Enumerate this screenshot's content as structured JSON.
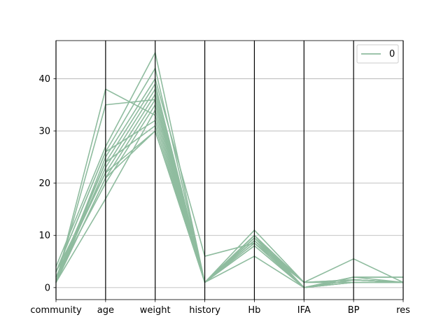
{
  "chart_data": {
    "type": "parallel-coordinates",
    "axes": [
      "community",
      "age",
      "weight",
      "history",
      "Hb",
      "IFA",
      "BP",
      "res"
    ],
    "ylim": [
      -2.3,
      47.3
    ],
    "yticks": [
      "0",
      "10",
      "20",
      "30",
      "40"
    ],
    "ytick_values": [
      0,
      10,
      20,
      30,
      40
    ],
    "grid": "horizontal",
    "legend": {
      "placement": "top-right",
      "entries": [
        "0"
      ]
    },
    "line_color": "#8fbc9f",
    "series": [
      {
        "class": "0",
        "values": [
          1,
          38,
          33,
          1,
          11,
          1,
          1,
          1
        ]
      },
      {
        "class": "0",
        "values": [
          1,
          35,
          36,
          1,
          9,
          0,
          1.5,
          1
        ]
      },
      {
        "class": "0",
        "values": [
          4,
          27,
          45,
          1,
          9.5,
          1,
          5.5,
          1
        ]
      },
      {
        "class": "0",
        "values": [
          3,
          26,
          42,
          1,
          10,
          0,
          2,
          2
        ]
      },
      {
        "class": "0",
        "values": [
          1,
          25,
          40,
          6,
          8.5,
          1,
          1.5,
          1
        ]
      },
      {
        "class": "0",
        "values": [
          2,
          24,
          39,
          1,
          10,
          0,
          1.5,
          1
        ]
      },
      {
        "class": "0",
        "values": [
          1,
          23,
          38,
          1,
          9,
          1,
          1,
          1
        ]
      },
      {
        "class": "0",
        "values": [
          3,
          22,
          37,
          1,
          6,
          0,
          2,
          2
        ]
      },
      {
        "class": "0",
        "values": [
          1,
          21,
          36,
          1,
          10,
          0,
          1,
          1
        ]
      },
      {
        "class": "0",
        "values": [
          2,
          20,
          35,
          1,
          9.5,
          1,
          1.5,
          1
        ]
      },
      {
        "class": "0",
        "values": [
          1,
          17,
          34,
          1,
          8,
          0,
          1,
          1
        ]
      },
      {
        "class": "0",
        "values": [
          3,
          26,
          32,
          1,
          9,
          0,
          2,
          1
        ]
      },
      {
        "class": "0",
        "values": [
          1,
          24,
          31,
          1,
          10,
          1,
          1,
          1
        ]
      },
      {
        "class": "0",
        "values": [
          2,
          22,
          30,
          1,
          9.5,
          0,
          1.5,
          1
        ]
      },
      {
        "class": "0",
        "values": [
          1,
          21,
          30,
          1,
          8.5,
          0,
          1,
          1
        ]
      }
    ]
  }
}
